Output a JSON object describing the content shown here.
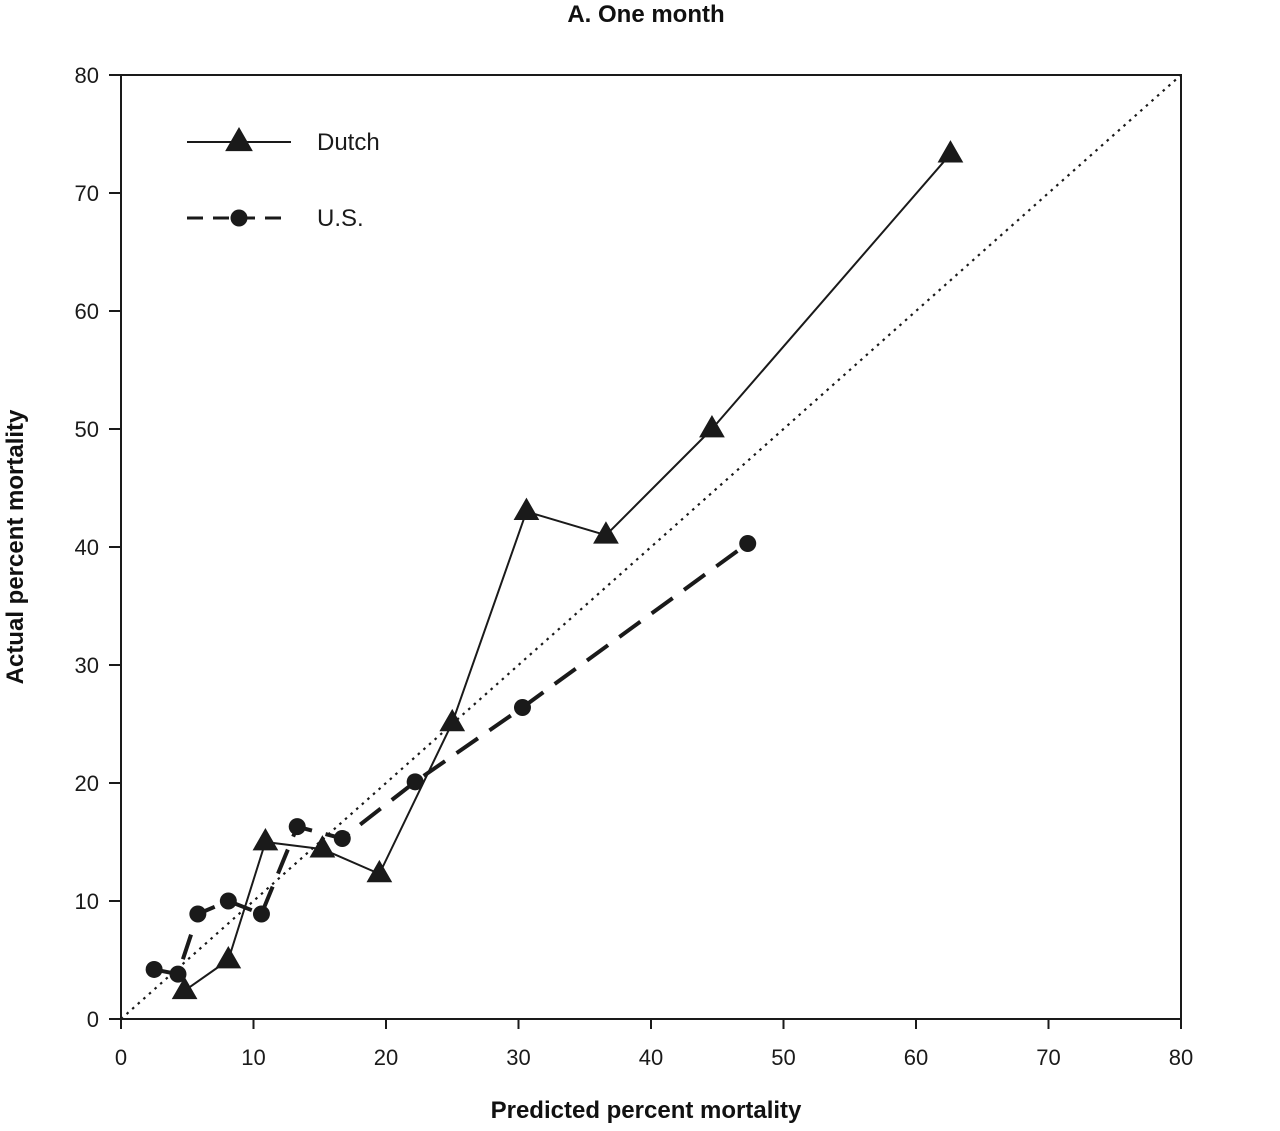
{
  "chart_data": {
    "type": "line",
    "title": "A. One month",
    "xlabel": "Predicted percent mortality",
    "ylabel": "Actual percent mortality",
    "xlim": [
      0,
      80
    ],
    "ylim": [
      0,
      80
    ],
    "xticks": [
      0,
      10,
      20,
      30,
      40,
      50,
      60,
      70,
      80
    ],
    "yticks": [
      0,
      10,
      20,
      30,
      40,
      50,
      60,
      70,
      80
    ],
    "grid": false,
    "legend_position": "top-left",
    "reference_line": {
      "style": "dotted",
      "x": [
        0,
        80
      ],
      "y": [
        0,
        80
      ]
    },
    "series": [
      {
        "name": "Dutch",
        "style": "solid",
        "marker": "triangle",
        "x": [
          4.8,
          8.1,
          10.9,
          15.2,
          19.5,
          25.0,
          30.6,
          36.6,
          44.6,
          62.6
        ],
        "y": [
          2.4,
          5.0,
          15.0,
          14.4,
          12.3,
          25.1,
          43.0,
          41.0,
          50.0,
          73.3
        ]
      },
      {
        "name": "U.S.",
        "style": "dashed",
        "marker": "circle",
        "x": [
          2.5,
          4.3,
          5.8,
          8.1,
          10.6,
          13.3,
          16.7,
          22.2,
          30.3,
          47.3
        ],
        "y": [
          4.2,
          3.8,
          8.9,
          10.0,
          8.9,
          16.3,
          15.3,
          20.1,
          26.4,
          40.3
        ]
      }
    ]
  }
}
